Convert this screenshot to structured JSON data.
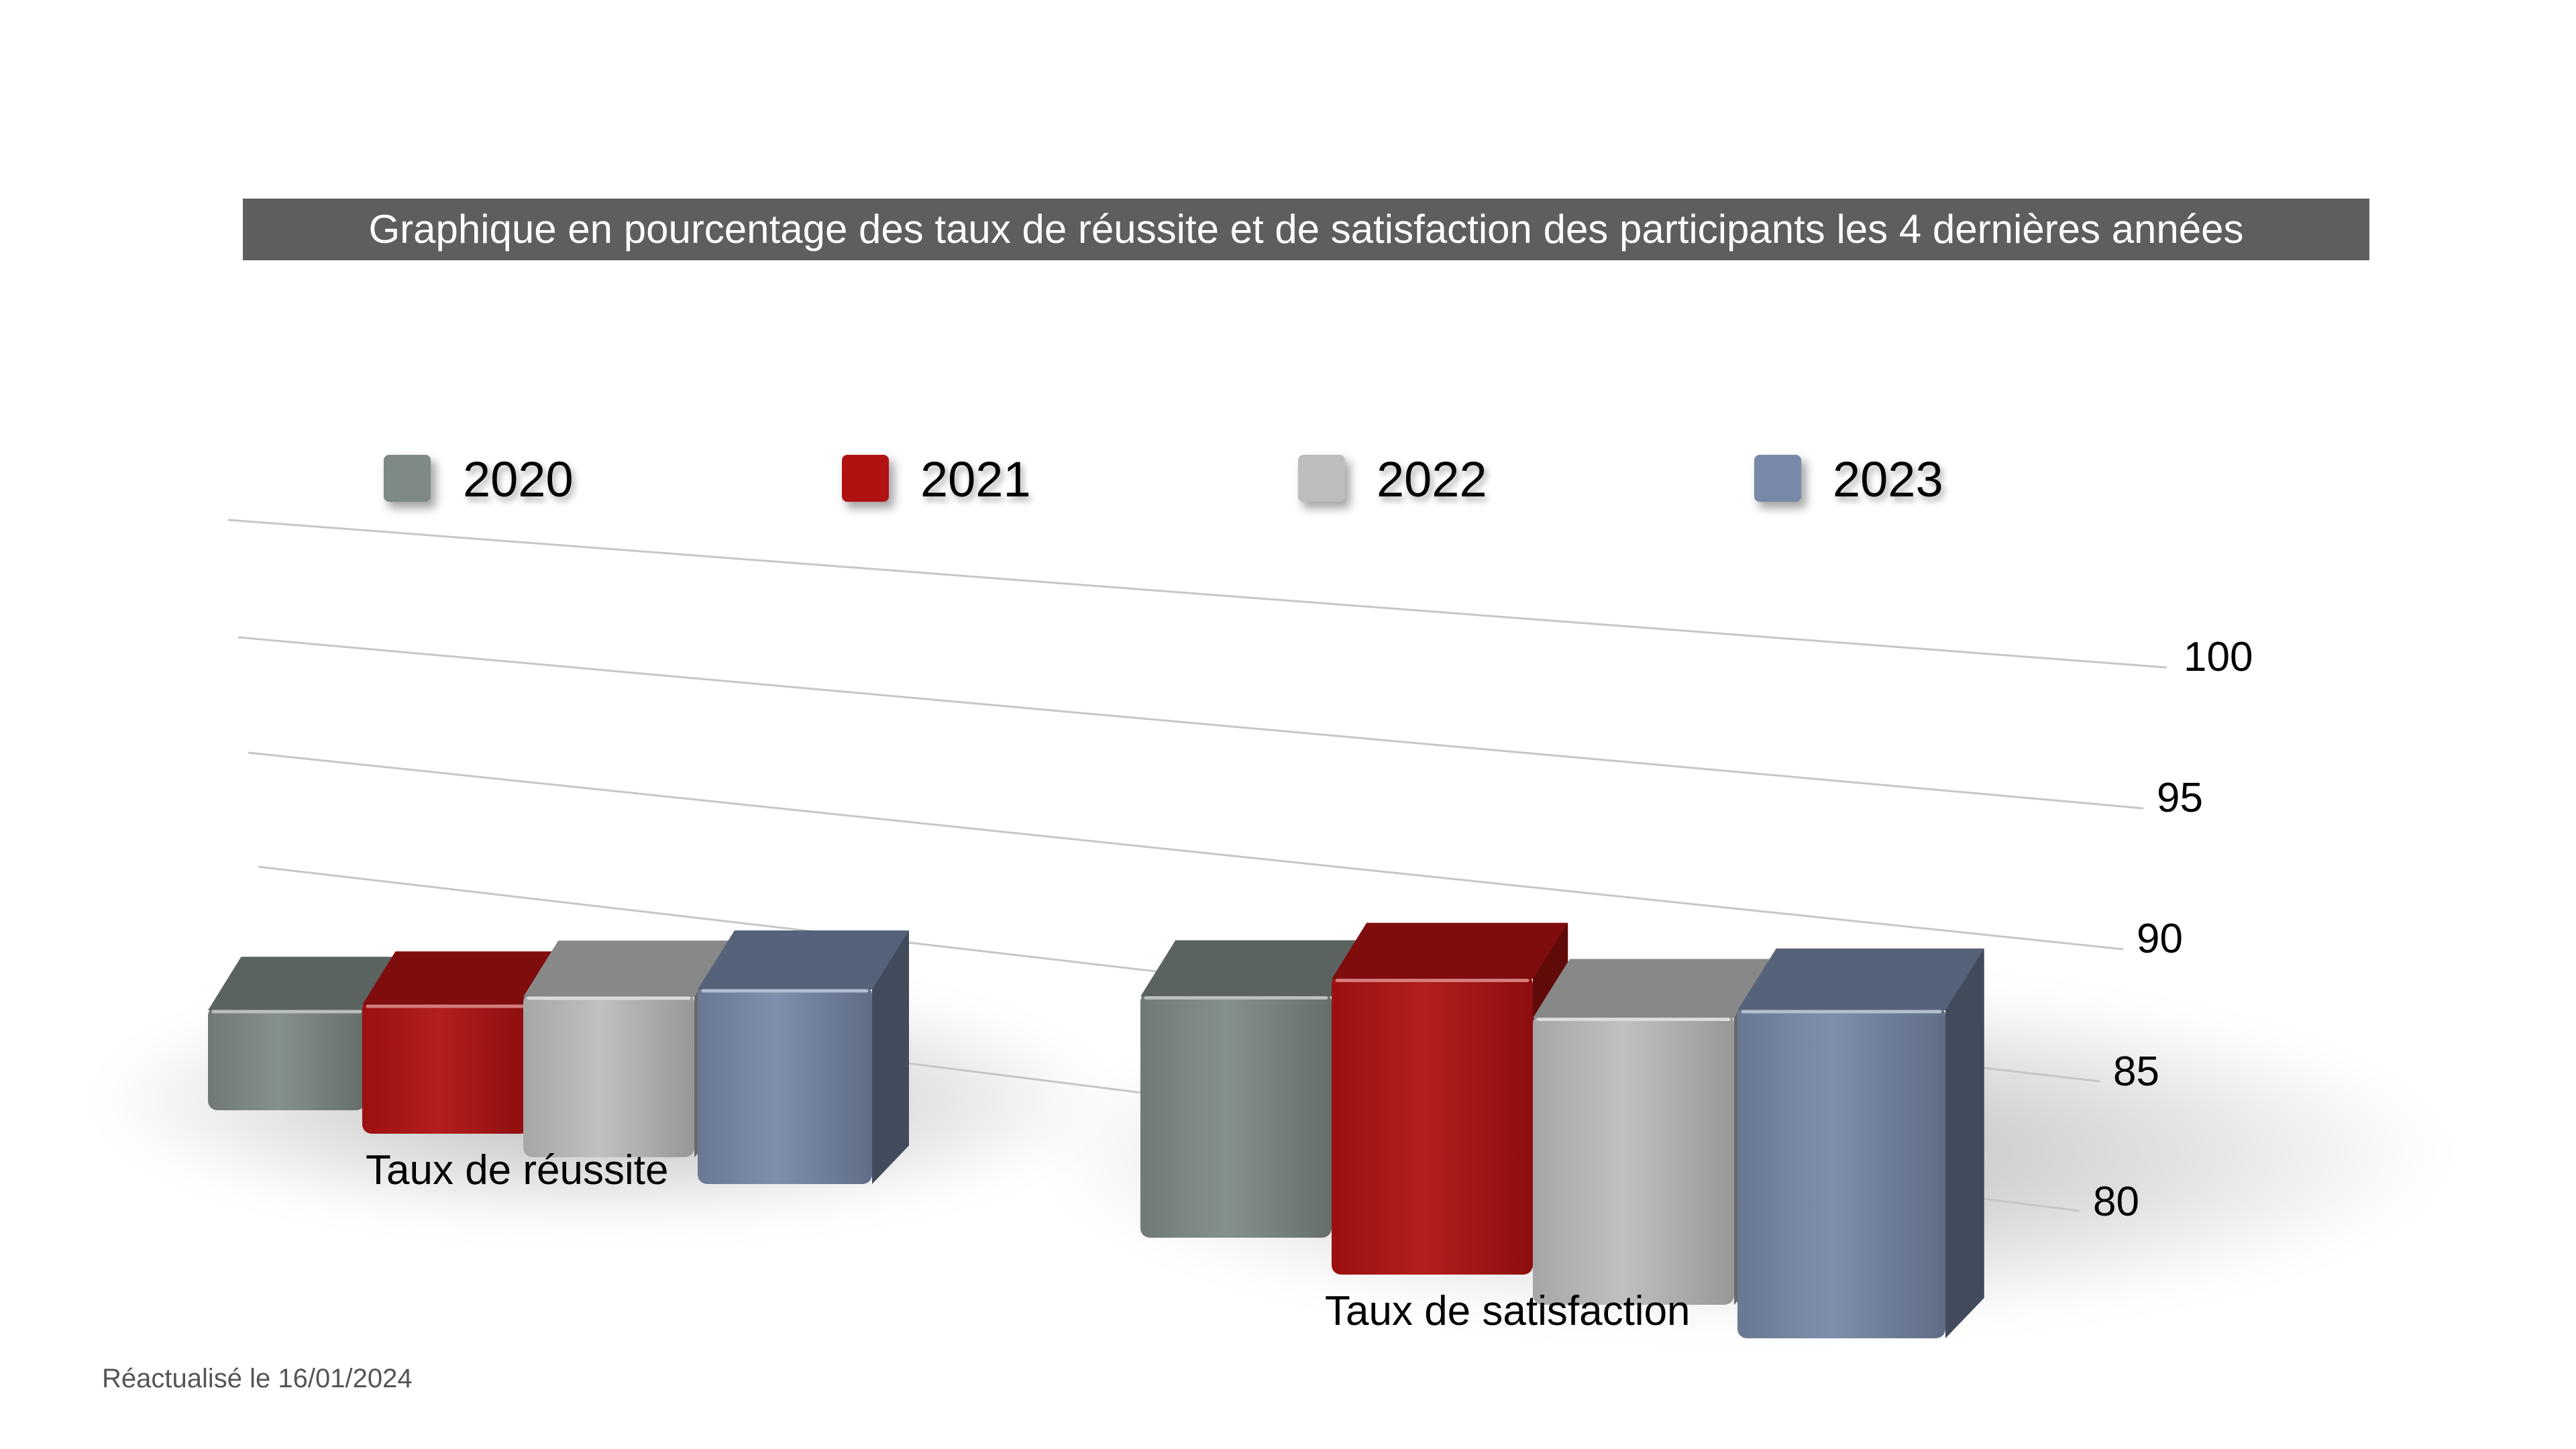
{
  "chart_data": {
    "type": "bar",
    "title": "Graphique en pourcentage des taux de réussite et de satisfaction des participants les 4 dernières années",
    "categories": [
      "Taux de réussite",
      "Taux de satisfaction"
    ],
    "series": [
      {
        "name": "2020",
        "values": [
          90,
          97
        ],
        "color": "#7f8a86"
      },
      {
        "name": "2021",
        "values": [
          92,
          99
        ],
        "color": "#b01212"
      },
      {
        "name": "2022",
        "values": [
          94,
          97
        ],
        "color": "#bdbdbd"
      },
      {
        "name": "2023",
        "values": [
          96,
          98
        ],
        "color": "#7788a8"
      }
    ],
    "y_ticks": [
      "100",
      "95",
      "90",
      "85",
      "80"
    ],
    "ylim": [
      80,
      100
    ],
    "grid": true,
    "legend_position": "top",
    "projection": "3d"
  },
  "footer": {
    "updated": "Réactualisé le 16/01/2024"
  }
}
